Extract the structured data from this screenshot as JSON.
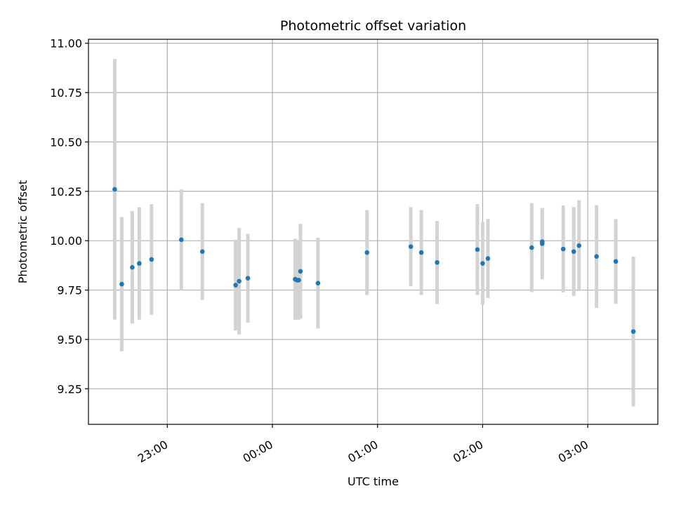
{
  "chart_data": {
    "type": "scatter",
    "title": "Photometric offset variation",
    "xlabel": "UTC time",
    "ylabel": "Photometric offset",
    "x_unit": "UTC",
    "xlim": [
      "22:15",
      "03:40"
    ],
    "ylim": [
      9.07,
      11.02
    ],
    "x_ticks": [
      "23:00",
      "00:00",
      "01:00",
      "02:00",
      "03:00"
    ],
    "y_ticks": [
      "9.25",
      "9.50",
      "9.75",
      "10.00",
      "10.25",
      "10.50",
      "10.75",
      "11.00"
    ],
    "grid": true,
    "colors": {
      "point": "#1f77b4",
      "errorbar": "#d3d3d3",
      "grid": "#b0b0b0"
    },
    "points": [
      {
        "x": "22:30",
        "y": 10.26,
        "err": 0.66
      },
      {
        "x": "22:34",
        "y": 9.78,
        "err": 0.34
      },
      {
        "x": "22:40",
        "y": 9.865,
        "err": 0.285
      },
      {
        "x": "22:44",
        "y": 9.885,
        "err": 0.285
      },
      {
        "x": "22:51",
        "y": 9.905,
        "err": 0.28
      },
      {
        "x": "23:08",
        "y": 10.005,
        "err": 0.255
      },
      {
        "x": "23:20",
        "y": 9.945,
        "err": 0.245
      },
      {
        "x": "23:39",
        "y": 9.775,
        "err": 0.23
      },
      {
        "x": "23:41",
        "y": 9.795,
        "err": 0.27
      },
      {
        "x": "23:46",
        "y": 9.81,
        "err": 0.225
      },
      {
        "x": "00:13",
        "y": 9.805,
        "err": 0.205
      },
      {
        "x": "00:14",
        "y": 9.8,
        "err": 0.2
      },
      {
        "x": "00:15",
        "y": 9.8,
        "err": 0.2
      },
      {
        "x": "00:16",
        "y": 9.845,
        "err": 0.24
      },
      {
        "x": "00:26",
        "y": 9.785,
        "err": 0.23
      },
      {
        "x": "00:54",
        "y": 9.94,
        "err": 0.215
      },
      {
        "x": "01:19",
        "y": 9.97,
        "err": 0.2
      },
      {
        "x": "01:25",
        "y": 9.94,
        "err": 0.215
      },
      {
        "x": "01:34",
        "y": 9.89,
        "err": 0.21
      },
      {
        "x": "01:57",
        "y": 9.955,
        "err": 0.23
      },
      {
        "x": "02:00",
        "y": 9.885,
        "err": 0.21
      },
      {
        "x": "02:03",
        "y": 9.91,
        "err": 0.2
      },
      {
        "x": "02:28",
        "y": 9.965,
        "err": 0.225
      },
      {
        "x": "02:34",
        "y": 9.985,
        "err": 0.18
      },
      {
        "x": "02:34",
        "y": 9.995,
        "err": 0.17
      },
      {
        "x": "02:46",
        "y": 9.958,
        "err": 0.22
      },
      {
        "x": "02:52",
        "y": 9.945,
        "err": 0.225
      },
      {
        "x": "02:55",
        "y": 9.975,
        "err": 0.23
      },
      {
        "x": "03:05",
        "y": 9.92,
        "err": 0.26
      },
      {
        "x": "03:16",
        "y": 9.895,
        "err": 0.215
      },
      {
        "x": "03:26",
        "y": 9.54,
        "err": 0.38
      }
    ]
  }
}
